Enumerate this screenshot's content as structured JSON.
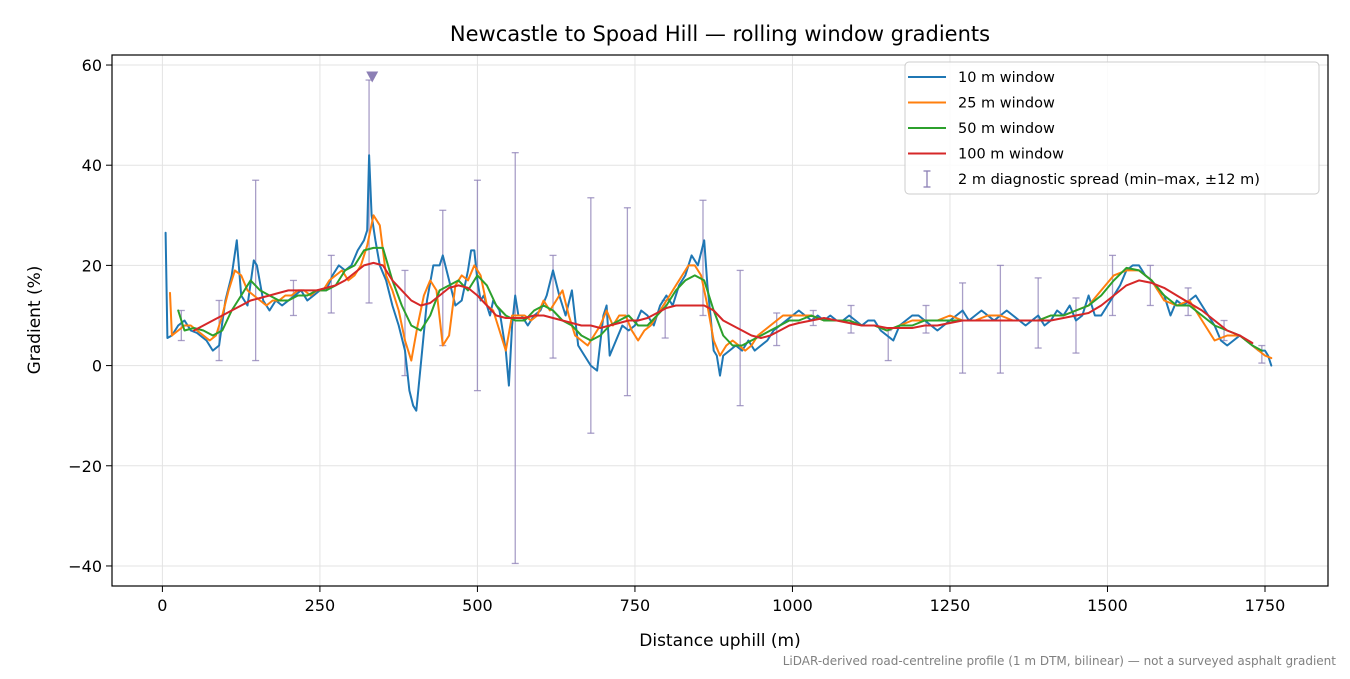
{
  "chart_data": {
    "type": "line",
    "title": "Newcastle to Spoad Hill — rolling window gradients",
    "xlabel": "Distance uphill (m)",
    "ylabel": "Gradient (%)",
    "xlim": [
      -80,
      1850
    ],
    "ylim": [
      -44,
      62
    ],
    "x_ticks": [
      0,
      250,
      500,
      750,
      1000,
      1250,
      1500,
      1750
    ],
    "y_ticks": [
      -40,
      -20,
      0,
      20,
      40,
      60
    ],
    "x_tick_labels": [
      "0",
      "250",
      "500",
      "750",
      "1000",
      "1250",
      "1500",
      "1750"
    ],
    "y_tick_labels": [
      "−40",
      "−20",
      "0",
      "20",
      "40",
      "60"
    ],
    "grid": true,
    "legend_position": "top-right",
    "footnote": "LiDAR-derived road-centreline profile (1 m DTM, bilinear) — not a surveyed asphalt gradient",
    "series": [
      {
        "name": "10 m window",
        "color": "#1f77b4",
        "x": [
          5,
          8,
          15,
          25,
          35,
          45,
          55,
          60,
          70,
          80,
          90,
          100,
          110,
          118,
          125,
          135,
          145,
          150,
          160,
          170,
          180,
          190,
          200,
          210,
          220,
          230,
          240,
          250,
          260,
          270,
          280,
          290,
          300,
          310,
          320,
          325,
          328,
          332,
          338,
          345,
          355,
          365,
          375,
          385,
          392,
          398,
          403,
          410,
          420,
          430,
          440,
          445,
          455,
          465,
          475,
          485,
          490,
          495,
          500,
          505,
          510,
          515,
          520,
          525,
          535,
          545,
          550,
          555,
          560,
          565,
          570,
          580,
          590,
          600,
          610,
          620,
          630,
          640,
          650,
          660,
          670,
          680,
          690,
          700,
          705,
          710,
          720,
          730,
          740,
          750,
          760,
          770,
          780,
          790,
          800,
          810,
          820,
          830,
          840,
          850,
          860,
          865,
          870,
          875,
          880,
          885,
          890,
          900,
          910,
          920,
          930,
          940,
          950,
          960,
          970,
          980,
          990,
          1000,
          1010,
          1020,
          1030,
          1040,
          1050,
          1060,
          1070,
          1080,
          1090,
          1100,
          1110,
          1120,
          1130,
          1140,
          1150,
          1160,
          1170,
          1180,
          1190,
          1200,
          1210,
          1220,
          1230,
          1240,
          1250,
          1260,
          1270,
          1280,
          1290,
          1300,
          1310,
          1320,
          1330,
          1340,
          1350,
          1360,
          1370,
          1380,
          1390,
          1400,
          1410,
          1420,
          1430,
          1440,
          1450,
          1460,
          1470,
          1480,
          1490,
          1500,
          1510,
          1520,
          1530,
          1540,
          1550,
          1560,
          1570,
          1580,
          1590,
          1600,
          1610,
          1620,
          1630,
          1640,
          1650,
          1660,
          1670,
          1680,
          1690,
          1700,
          1710,
          1720,
          1730,
          1740,
          1750,
          1755,
          1760
        ],
        "y": [
          26.5,
          5.5,
          6,
          8,
          9,
          7,
          6.5,
          6,
          5,
          3,
          4,
          13,
          18,
          25,
          14,
          12,
          21,
          20,
          13,
          11,
          13,
          12,
          13,
          14,
          15,
          13,
          14,
          15,
          15,
          18,
          20,
          19,
          20,
          23,
          25,
          27,
          42,
          30,
          25,
          20,
          17,
          12,
          8,
          3,
          -5,
          -8,
          -9,
          0,
          13,
          20,
          20,
          22,
          17,
          12,
          13,
          19,
          23,
          23,
          17,
          13,
          14,
          12,
          10,
          13,
          11,
          3,
          -4,
          8,
          14,
          10,
          10,
          8,
          10,
          11,
          14,
          19,
          14,
          10,
          15,
          4,
          2,
          0,
          -1,
          10,
          12,
          2,
          5,
          8,
          7,
          8,
          11,
          10,
          8,
          12,
          14,
          12,
          16,
          18,
          22,
          20,
          25,
          16,
          10,
          3,
          2,
          -2,
          2,
          3,
          4,
          3,
          5,
          3,
          4,
          5,
          7,
          8,
          9,
          10,
          11,
          10,
          9,
          10,
          9,
          10,
          9,
          9,
          10,
          9,
          8,
          9,
          9,
          7,
          6,
          5,
          8,
          9,
          10,
          10,
          9,
          8,
          7,
          8,
          9,
          10,
          11,
          9,
          10,
          11,
          10,
          9,
          10,
          11,
          10,
          9,
          8,
          9,
          10,
          8,
          9,
          11,
          10,
          12,
          9,
          10,
          14,
          10,
          10,
          12,
          14,
          16,
          19,
          20,
          20,
          18,
          17,
          15,
          14,
          10,
          13,
          12,
          13,
          14,
          12,
          10,
          8,
          5,
          4,
          5,
          6,
          5,
          4,
          3,
          3,
          2,
          0
        ]
      },
      {
        "name": "25 m window",
        "color": "#ff7f0e",
        "x": [
          12,
          15,
          25,
          35,
          45,
          55,
          65,
          75,
          85,
          95,
          105,
          115,
          125,
          135,
          145,
          155,
          165,
          175,
          185,
          195,
          205,
          215,
          225,
          235,
          245,
          255,
          265,
          275,
          285,
          295,
          305,
          315,
          325,
          335,
          345,
          355,
          365,
          375,
          385,
          395,
          405,
          415,
          425,
          435,
          445,
          455,
          465,
          475,
          485,
          495,
          505,
          515,
          525,
          535,
          545,
          555,
          565,
          575,
          585,
          595,
          605,
          615,
          625,
          635,
          645,
          655,
          665,
          675,
          685,
          695,
          705,
          715,
          725,
          735,
          745,
          755,
          765,
          775,
          785,
          795,
          805,
          815,
          825,
          835,
          845,
          855,
          865,
          875,
          885,
          895,
          905,
          915,
          925,
          935,
          945,
          955,
          965,
          975,
          985,
          995,
          1010,
          1030,
          1050,
          1070,
          1090,
          1110,
          1130,
          1150,
          1170,
          1190,
          1210,
          1230,
          1250,
          1270,
          1290,
          1310,
          1330,
          1350,
          1370,
          1390,
          1410,
          1430,
          1450,
          1470,
          1490,
          1510,
          1530,
          1550,
          1570,
          1590,
          1610,
          1630,
          1650,
          1670,
          1690,
          1710,
          1730,
          1750,
          1760
        ],
        "y": [
          14.5,
          6,
          7,
          8,
          8,
          7,
          6,
          5,
          6,
          10,
          15,
          19,
          18,
          15,
          14,
          13,
          12,
          13,
          13,
          14,
          14,
          15,
          15,
          14,
          15,
          15,
          17,
          18,
          19,
          17,
          18,
          20,
          24,
          30,
          28,
          18,
          15,
          11,
          5,
          1,
          8,
          14,
          17,
          15,
          4,
          6,
          16,
          18,
          17,
          20,
          18,
          12,
          11,
          7,
          3,
          10,
          10,
          10,
          9,
          10,
          13,
          11,
          13,
          15,
          10,
          6,
          5,
          4,
          6,
          8,
          11,
          8,
          10,
          10,
          7,
          5,
          7,
          8,
          10,
          12,
          14,
          16,
          18,
          20,
          20,
          18,
          12,
          5,
          2,
          4,
          5,
          4,
          3,
          4,
          6,
          7,
          8,
          9,
          10,
          10,
          10,
          10,
          9,
          9,
          9,
          8,
          8,
          7,
          8,
          9,
          9,
          9,
          10,
          9,
          9,
          10,
          10,
          9,
          9,
          9,
          10,
          10,
          11,
          12,
          15,
          18,
          19,
          19,
          17,
          13,
          12,
          13,
          9,
          5,
          6,
          6,
          4,
          2,
          1.5
        ]
      },
      {
        "name": "50 m window",
        "color": "#2ca02c",
        "x": [
          25,
          35,
          50,
          65,
          80,
          95,
          110,
          125,
          140,
          155,
          170,
          185,
          200,
          215,
          230,
          245,
          260,
          275,
          290,
          305,
          320,
          335,
          350,
          365,
          380,
          395,
          410,
          425,
          440,
          455,
          470,
          485,
          500,
          515,
          530,
          545,
          560,
          575,
          590,
          605,
          620,
          635,
          650,
          665,
          680,
          695,
          710,
          725,
          740,
          755,
          770,
          785,
          800,
          815,
          830,
          845,
          860,
          875,
          890,
          905,
          920,
          935,
          950,
          965,
          980,
          995,
          1010,
          1030,
          1050,
          1070,
          1090,
          1110,
          1130,
          1150,
          1170,
          1190,
          1210,
          1230,
          1250,
          1270,
          1290,
          1310,
          1330,
          1350,
          1370,
          1390,
          1410,
          1430,
          1450,
          1470,
          1490,
          1510,
          1530,
          1550,
          1570,
          1590,
          1610,
          1630,
          1650,
          1670,
          1690,
          1710,
          1730,
          1745
        ],
        "y": [
          11,
          7,
          7.5,
          7,
          6,
          7,
          11,
          14,
          17,
          15,
          14,
          13,
          13,
          14,
          14,
          15,
          15,
          16,
          19,
          20,
          23,
          23.5,
          23.5,
          17,
          12,
          8,
          7,
          10,
          15,
          16,
          17,
          15,
          18,
          16,
          12,
          10,
          9,
          9,
          11,
          12,
          11,
          9,
          8,
          6,
          5,
          6,
          8,
          9,
          10,
          8,
          8,
          10,
          12,
          15,
          17,
          18,
          17,
          11,
          6,
          4,
          4,
          5,
          6,
          7,
          8,
          9,
          9,
          10,
          9,
          9,
          9,
          8,
          8,
          7,
          8,
          8,
          9,
          9,
          9,
          9,
          9,
          9,
          9,
          9,
          9,
          9,
          10,
          10,
          11,
          12,
          14,
          17,
          19.5,
          19,
          17,
          14,
          12,
          12,
          10,
          8,
          7,
          6,
          4,
          3
        ]
      },
      {
        "name": "100 m window",
        "color": "#d62728",
        "x": [
          50,
          65,
          80,
          95,
          110,
          125,
          140,
          155,
          170,
          185,
          200,
          215,
          230,
          245,
          260,
          275,
          290,
          305,
          320,
          335,
          350,
          365,
          380,
          395,
          410,
          425,
          440,
          455,
          470,
          485,
          500,
          515,
          530,
          545,
          560,
          575,
          590,
          605,
          620,
          635,
          650,
          665,
          680,
          695,
          710,
          725,
          740,
          755,
          770,
          785,
          800,
          815,
          830,
          845,
          860,
          875,
          890,
          905,
          920,
          935,
          950,
          965,
          980,
          995,
          1010,
          1030,
          1050,
          1070,
          1090,
          1110,
          1130,
          1150,
          1170,
          1190,
          1210,
          1230,
          1250,
          1270,
          1290,
          1310,
          1330,
          1350,
          1370,
          1390,
          1410,
          1430,
          1450,
          1470,
          1490,
          1510,
          1530,
          1550,
          1570,
          1590,
          1610,
          1630,
          1650,
          1670,
          1690,
          1710,
          1730
        ],
        "y": [
          7,
          8,
          9,
          10,
          11,
          12,
          13,
          13.5,
          14,
          14.5,
          15,
          15,
          15,
          15,
          15.5,
          16,
          17,
          18.5,
          20,
          20.5,
          20,
          17,
          15,
          13,
          12,
          12.5,
          14,
          15.5,
          16,
          15.5,
          14,
          12,
          10,
          9.5,
          9.5,
          9.5,
          10,
          10,
          9.5,
          9,
          8.5,
          8,
          8,
          7.5,
          8,
          8.5,
          9,
          9,
          9.5,
          10.5,
          11.5,
          12,
          12,
          12,
          12,
          11,
          9,
          8,
          7,
          6,
          5.5,
          6,
          7,
          8,
          8.5,
          9,
          9.5,
          9,
          8.5,
          8,
          8,
          7.5,
          7.5,
          7.5,
          8,
          8,
          8.5,
          9,
          9,
          9,
          9,
          9,
          9,
          9,
          9,
          9.5,
          10,
          10.5,
          12,
          14,
          16,
          17,
          16.5,
          15.5,
          14,
          12.5,
          11,
          9,
          7,
          6,
          4.5
        ]
      }
    ],
    "error_bars": {
      "name": "2 m diagnostic spread (min–max, ±12 m)",
      "color": "#8c7fb5",
      "points": [
        {
          "x": 30,
          "low": 5,
          "high": 11
        },
        {
          "x": 90,
          "low": 1,
          "high": 13
        },
        {
          "x": 148,
          "low": 1,
          "high": 37
        },
        {
          "x": 208,
          "low": 10,
          "high": 17
        },
        {
          "x": 268,
          "low": 10.5,
          "high": 22
        },
        {
          "x": 328,
          "low": 12.5,
          "high": 57
        },
        {
          "x": 385,
          "low": -2,
          "high": 19
        },
        {
          "x": 445,
          "low": 4,
          "high": 31
        },
        {
          "x": 500,
          "low": -5,
          "high": 37
        },
        {
          "x": 560,
          "low": -39.5,
          "high": 42.5
        },
        {
          "x": 620,
          "low": 1.5,
          "high": 22
        },
        {
          "x": 680,
          "low": -13.5,
          "high": 33.5
        },
        {
          "x": 738,
          "low": -6,
          "high": 31.5
        },
        {
          "x": 798,
          "low": 5.5,
          "high": 13
        },
        {
          "x": 858,
          "low": 10,
          "high": 33
        },
        {
          "x": 917,
          "low": -8,
          "high": 19
        },
        {
          "x": 975,
          "low": 4,
          "high": 10.5
        },
        {
          "x": 1033,
          "low": 8,
          "high": 11
        },
        {
          "x": 1093,
          "low": 6.5,
          "high": 12
        },
        {
          "x": 1152,
          "low": 1,
          "high": 7
        },
        {
          "x": 1212,
          "low": 6.5,
          "high": 12
        },
        {
          "x": 1270,
          "low": -1.5,
          "high": 16.5
        },
        {
          "x": 1330,
          "low": -1.5,
          "high": 20
        },
        {
          "x": 1390,
          "low": 3.5,
          "high": 17.5
        },
        {
          "x": 1450,
          "low": 2.5,
          "high": 13.5
        },
        {
          "x": 1508,
          "low": 10,
          "high": 22
        },
        {
          "x": 1568,
          "low": 12,
          "high": 20
        },
        {
          "x": 1628,
          "low": 10,
          "high": 15.5
        },
        {
          "x": 1685,
          "low": 5,
          "high": 9
        },
        {
          "x": 1745,
          "low": 0.5,
          "high": 4
        }
      ]
    },
    "marker": {
      "x": 333,
      "y": 57.5,
      "color": "#8c7fb5",
      "shape": "triangle-down"
    }
  }
}
